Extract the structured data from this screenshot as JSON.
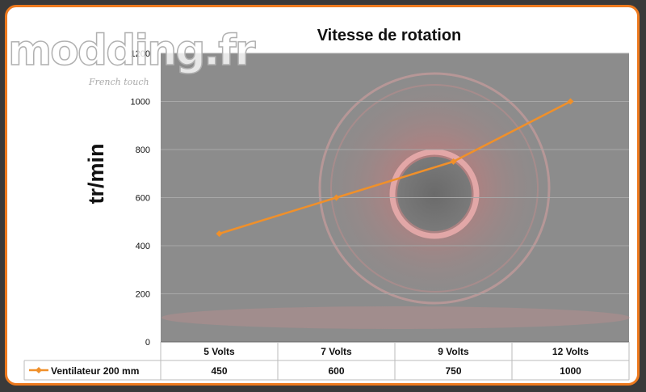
{
  "watermark": {
    "logo_text": "modding.fr",
    "tagline": "French touch"
  },
  "chart_data": {
    "type": "line",
    "title": "Vitesse de rotation",
    "xlabel": "",
    "ylabel": "tr/min",
    "categories": [
      "5 Volts",
      "7 Volts",
      "9 Volts",
      "12 Volts"
    ],
    "series": [
      {
        "name": "Ventilateur 200 mm",
        "values": [
          450,
          600,
          750,
          1000
        ]
      }
    ],
    "ylim": [
      0,
      1200
    ],
    "yticks": [
      0,
      200,
      400,
      600,
      800,
      1000,
      1200
    ],
    "grid": true,
    "legend": "data-table",
    "colors": {
      "series": "#f0902a",
      "plot_bg": "#8c8c8c",
      "frame": "#ee7a1e"
    }
  }
}
